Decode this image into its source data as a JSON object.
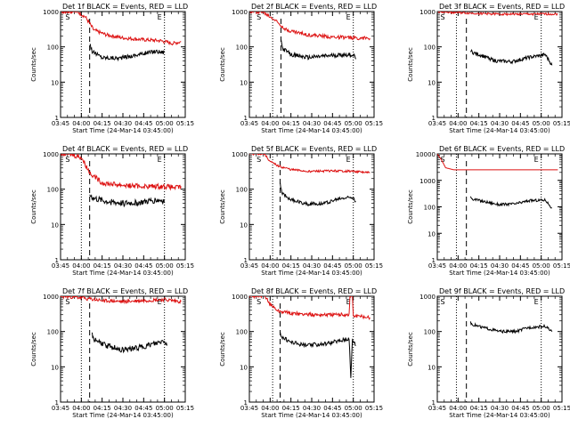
{
  "colors": {
    "events": "#000000",
    "lld": "#dd1111",
    "axes": "#000000"
  },
  "chart_data": [
    {
      "type": "line",
      "title": "Det 1f BLACK = Events, RED = LLD",
      "xlabel": "Start Time (24-Mar-14 03:45:00)",
      "ylabel": "Counts/sec",
      "yscale": "log",
      "ylim": [
        1,
        1000
      ],
      "x_ticks": [
        "03:45",
        "04:00",
        "04:15",
        "04:30",
        "04:45",
        "05:00",
        "05:15"
      ],
      "y_ticks": [
        "1",
        "10",
        "100",
        "1000"
      ],
      "flags": [
        "S",
        "E"
      ],
      "dotted_lines": [
        0.25,
        1.25
      ],
      "dashed_line": 0.35,
      "series": [
        {
          "color": "events",
          "x": [
            0.35,
            0.38,
            0.5,
            0.7,
            0.85,
            1.0,
            1.15,
            1.25
          ],
          "y": [
            130,
            75,
            50,
            48,
            55,
            65,
            75,
            70
          ],
          "noise": 0.06
        },
        {
          "color": "lld",
          "x": [
            0,
            0.12,
            0.2,
            0.3,
            0.4,
            0.55,
            0.75,
            1.0,
            1.2,
            1.35,
            1.45
          ],
          "y": [
            1000,
            1000,
            1000,
            700,
            300,
            220,
            180,
            160,
            150,
            125,
            140
          ],
          "noise": 0.05
        }
      ]
    },
    {
      "type": "line",
      "title": "Det 2f BLACK = Events, RED = LLD",
      "xlabel": "Start Time (24-Mar-14 03:45:00)",
      "ylabel": "Counts/sec",
      "yscale": "log",
      "ylim": [
        1,
        1000
      ],
      "x_ticks": [
        "03:45",
        "04:00",
        "04:15",
        "04:30",
        "04:45",
        "05:00",
        "05:15"
      ],
      "y_ticks": [
        "1",
        "10",
        "100",
        "1000"
      ],
      "flags": [
        "S",
        "E"
      ],
      "dotted_lines": [
        0.28,
        1.25
      ],
      "dashed_line": 0.38,
      "series": [
        {
          "color": "events",
          "x": [
            0.38,
            0.4,
            0.5,
            0.7,
            0.9,
            1.1,
            1.25,
            1.28
          ],
          "y": [
            160,
            90,
            60,
            50,
            55,
            60,
            60,
            45
          ],
          "noise": 0.06
        },
        {
          "color": "lld",
          "x": [
            0,
            0.15,
            0.3,
            0.45,
            0.7,
            1.0,
            1.25,
            1.45
          ],
          "y": [
            1000,
            1000,
            600,
            300,
            220,
            190,
            180,
            175
          ],
          "noise": 0.05
        }
      ]
    },
    {
      "type": "line",
      "title": "Det 3f BLACK = Events, RED = LLD",
      "xlabel": "Start Time (24-Mar-14 03:45:00)",
      "ylabel": "Counts/sec",
      "yscale": "log",
      "ylim": [
        1,
        1000
      ],
      "x_ticks": [
        "03:45",
        "04:00",
        "04:15",
        "04:30",
        "04:45",
        "05:00",
        "05:15"
      ],
      "y_ticks": [
        "1",
        "10",
        "100",
        "1000"
      ],
      "flags": [
        "S",
        "E"
      ],
      "dotted_lines": [
        0.23,
        1.25
      ],
      "dashed_line": 0.35,
      "series": [
        {
          "color": "events",
          "x": [
            0.4,
            0.42,
            0.55,
            0.7,
            0.9,
            1.1,
            1.3,
            1.38
          ],
          "y": [
            80,
            70,
            55,
            40,
            38,
            50,
            60,
            30
          ],
          "noise": 0.05
        },
        {
          "color": "lld",
          "x": [
            0,
            0.4,
            0.7,
            1.0,
            1.25,
            1.45
          ],
          "y": [
            1000,
            900,
            850,
            850,
            850,
            850
          ],
          "noise": 0.03
        }
      ]
    },
    {
      "type": "line",
      "title": "Det 4f BLACK = Events, RED = LLD",
      "xlabel": "Start Time (24-Mar-14 03:45:00)",
      "ylabel": "Counts/sec",
      "yscale": "log",
      "ylim": [
        1,
        1000
      ],
      "x_ticks": [
        "03:45",
        "04:00",
        "04:15",
        "04:30",
        "04:45",
        "05:00",
        "05:15"
      ],
      "y_ticks": [
        "1",
        "10",
        "100",
        "1000"
      ],
      "flags": [
        "S",
        "E"
      ],
      "dotted_lines": [
        0.25,
        1.25
      ],
      "dashed_line": 0.35,
      "series": [
        {
          "color": "events",
          "x": [
            0.35,
            0.4,
            0.55,
            0.75,
            0.95,
            1.15,
            1.25
          ],
          "y": [
            70,
            55,
            45,
            40,
            42,
            50,
            48
          ],
          "noise": 0.09
        },
        {
          "color": "lld",
          "x": [
            0,
            0.1,
            0.25,
            0.35,
            0.5,
            0.75,
            1.0,
            1.25,
            1.4,
            1.45
          ],
          "y": [
            1000,
            1000,
            800,
            300,
            150,
            130,
            120,
            120,
            110,
            120
          ],
          "noise": 0.07
        }
      ]
    },
    {
      "type": "line",
      "title": "Det 5f BLACK = Events, RED = LLD",
      "xlabel": "Start Time (24-Mar-14 03:45:00)",
      "ylabel": "Counts/sec",
      "yscale": "log",
      "ylim": [
        1,
        1000
      ],
      "x_ticks": [
        "03:45",
        "04:00",
        "04:15",
        "04:30",
        "04:45",
        "05:00",
        "05:15"
      ],
      "y_ticks": [
        "1",
        "10",
        "100",
        "1000"
      ],
      "flags": [
        "S",
        "E"
      ],
      "dotted_lines": [
        0.28,
        1.25
      ],
      "dashed_line": 0.37,
      "series": [
        {
          "color": "events",
          "x": [
            0.37,
            0.39,
            0.5,
            0.7,
            0.9,
            1.1,
            1.25,
            1.28
          ],
          "y": [
            140,
            80,
            50,
            38,
            40,
            55,
            60,
            45
          ],
          "noise": 0.05
        },
        {
          "color": "lld",
          "x": [
            0,
            0.18,
            0.25,
            0.35,
            0.5,
            0.7,
            1.0,
            1.25,
            1.45
          ],
          "y": [
            1000,
            1000,
            600,
            450,
            360,
            320,
            330,
            320,
            290
          ],
          "noise": 0.03
        }
      ]
    },
    {
      "type": "line",
      "title": "Det 6f BLACK = Events, RED = LLD",
      "xlabel": "Start Time (24-Mar-14 03:45:00)",
      "ylabel": "Counts/sec",
      "yscale": "log",
      "ylim": [
        1,
        10000
      ],
      "x_ticks": [
        "03:45",
        "04:00",
        "04:15",
        "04:30",
        "04:45",
        "05:00",
        "05:15"
      ],
      "y_ticks": [
        "1",
        "10",
        "100",
        "1000",
        "10000"
      ],
      "flags": [
        "S",
        "E"
      ],
      "dotted_lines": [
        0.23,
        1.25
      ],
      "dashed_line": 0.35,
      "series": [
        {
          "color": "events",
          "x": [
            0.4,
            0.42,
            0.55,
            0.75,
            0.95,
            1.1,
            1.3,
            1.38
          ],
          "y": [
            250,
            200,
            160,
            120,
            130,
            170,
            180,
            90
          ],
          "noise": 0.05
        },
        {
          "color": "lld",
          "x": [
            0,
            0.05,
            0.1,
            0.2,
            0.4,
            1.0,
            1.45
          ],
          "y": [
            10000,
            6000,
            3000,
            2500,
            2500,
            2500,
            2500
          ],
          "noise": 0
        }
      ]
    },
    {
      "type": "line",
      "title": "Det 7f BLACK = Events, RED = LLD",
      "xlabel": "Start Time (24-Mar-14 03:45:00)",
      "ylabel": "Counts/sec",
      "yscale": "log",
      "ylim": [
        1,
        1000
      ],
      "x_ticks": [
        "03:45",
        "04:00",
        "04:15",
        "04:30",
        "04:45",
        "05:00",
        "05:15"
      ],
      "y_ticks": [
        "1",
        "10",
        "100",
        "1000"
      ],
      "flags": [
        "S",
        "E"
      ],
      "dotted_lines": [
        0.25,
        1.25
      ],
      "dashed_line": 0.35,
      "series": [
        {
          "color": "events",
          "x": [
            0.38,
            0.4,
            0.55,
            0.75,
            0.95,
            1.15,
            1.25,
            1.28
          ],
          "y": [
            80,
            60,
            40,
            30,
            35,
            45,
            55,
            40
          ],
          "noise": 0.08
        },
        {
          "color": "lld",
          "x": [
            0,
            0.25,
            0.5,
            0.75,
            1.0,
            1.25,
            1.45
          ],
          "y": [
            1000,
            900,
            750,
            700,
            750,
            800,
            700
          ],
          "noise": 0.05
        }
      ]
    },
    {
      "type": "line",
      "title": "Det 8f BLACK = Events, RED = LLD",
      "xlabel": "Start Time (24-Mar-14 03:45:00)",
      "ylabel": "Counts/sec",
      "yscale": "log",
      "ylim": [
        1,
        1000
      ],
      "x_ticks": [
        "03:45",
        "04:00",
        "04:15",
        "04:30",
        "04:45",
        "05:00",
        "05:15"
      ],
      "y_ticks": [
        "1",
        "10",
        "100",
        "1000"
      ],
      "flags": [
        "S",
        "E"
      ],
      "dotted_lines": [
        0.28,
        1.25
      ],
      "dashed_line": 0.37,
      "series": [
        {
          "color": "events",
          "x": [
            0.37,
            0.39,
            0.5,
            0.7,
            0.9,
            1.1,
            1.2,
            1.22,
            1.24,
            1.26,
            1.28
          ],
          "y": [
            100,
            70,
            50,
            40,
            45,
            55,
            65,
            5,
            60,
            50,
            40
          ],
          "noise": 0.06
        },
        {
          "color": "lld",
          "x": [
            0,
            0.18,
            0.25,
            0.35,
            0.5,
            0.75,
            1.0,
            1.2,
            1.21,
            1.24,
            1.25,
            1.45
          ],
          "y": [
            1000,
            1000,
            600,
            380,
            330,
            300,
            300,
            300,
            1000,
            1000,
            280,
            250
          ],
          "noise": 0.05
        }
      ]
    },
    {
      "type": "line",
      "title": "Det 9f BLACK = Events, RED = LLD",
      "xlabel": "Start Time (24-Mar-14 03:45:00)",
      "ylabel": "Counts/sec",
      "yscale": "log",
      "ylim": [
        1,
        1000
      ],
      "x_ticks": [
        "03:45",
        "04:00",
        "04:15",
        "04:30",
        "04:45",
        "05:00",
        "05:15"
      ],
      "y_ticks": [
        "1",
        "10",
        "100",
        "1000"
      ],
      "flags": [
        "S",
        "E"
      ],
      "dotted_lines": [
        0.23,
        1.25
      ],
      "dashed_line": 0.35,
      "series": [
        {
          "color": "events",
          "x": [
            0.4,
            0.42,
            0.55,
            0.75,
            0.95,
            1.1,
            1.3,
            1.38
          ],
          "y": [
            180,
            160,
            130,
            100,
            100,
            130,
            140,
            100
          ],
          "noise": 0.04
        }
      ]
    }
  ]
}
